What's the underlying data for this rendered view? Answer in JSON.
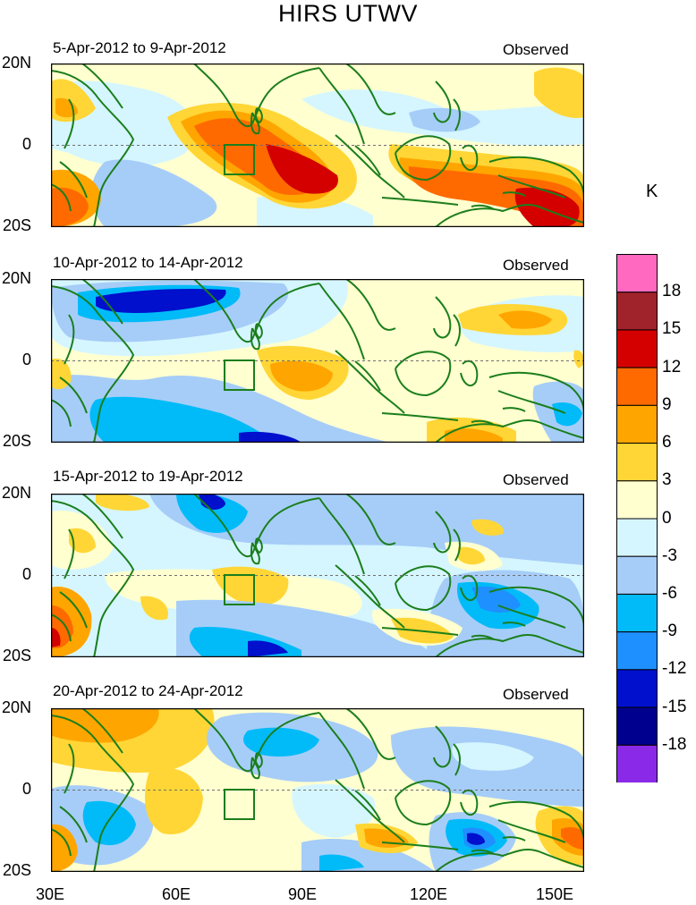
{
  "title": "HIRS UTWV",
  "panels": [
    {
      "period": "5-Apr-2012 to 9-Apr-2012",
      "label": "Observed"
    },
    {
      "period": "10-Apr-2012 to 14-Apr-2012",
      "label": "Observed"
    },
    {
      "period": "15-Apr-2012 to 19-Apr-2012",
      "label": "Observed"
    },
    {
      "period": "20-Apr-2012 to 24-Apr-2012",
      "label": "Observed"
    }
  ],
  "y_axis": {
    "labels": [
      "20N",
      "0",
      "20S"
    ]
  },
  "x_axis": {
    "labels": [
      "30E",
      "60E",
      "90E",
      "120E",
      "150E"
    ]
  },
  "colorbar": {
    "unit": "K",
    "levels": [
      "18",
      "15",
      "12",
      "9",
      "6",
      "3",
      "0",
      "-3",
      "-6",
      "-9",
      "-12",
      "-15",
      "-18"
    ],
    "colors": [
      "#ff69bf",
      "#a0222a",
      "#d40000",
      "#ff6a00",
      "#ffa500",
      "#ffd635",
      "#ffffd0",
      "#d5f6ff",
      "#a6cdf8",
      "#00bbf8",
      "#1e90ff",
      "#0010cd",
      "#00008f",
      "#8a2ae8"
    ]
  },
  "map_colors": {
    "coast": "#1b7e1c",
    "equator": "#6f6f6f"
  }
}
